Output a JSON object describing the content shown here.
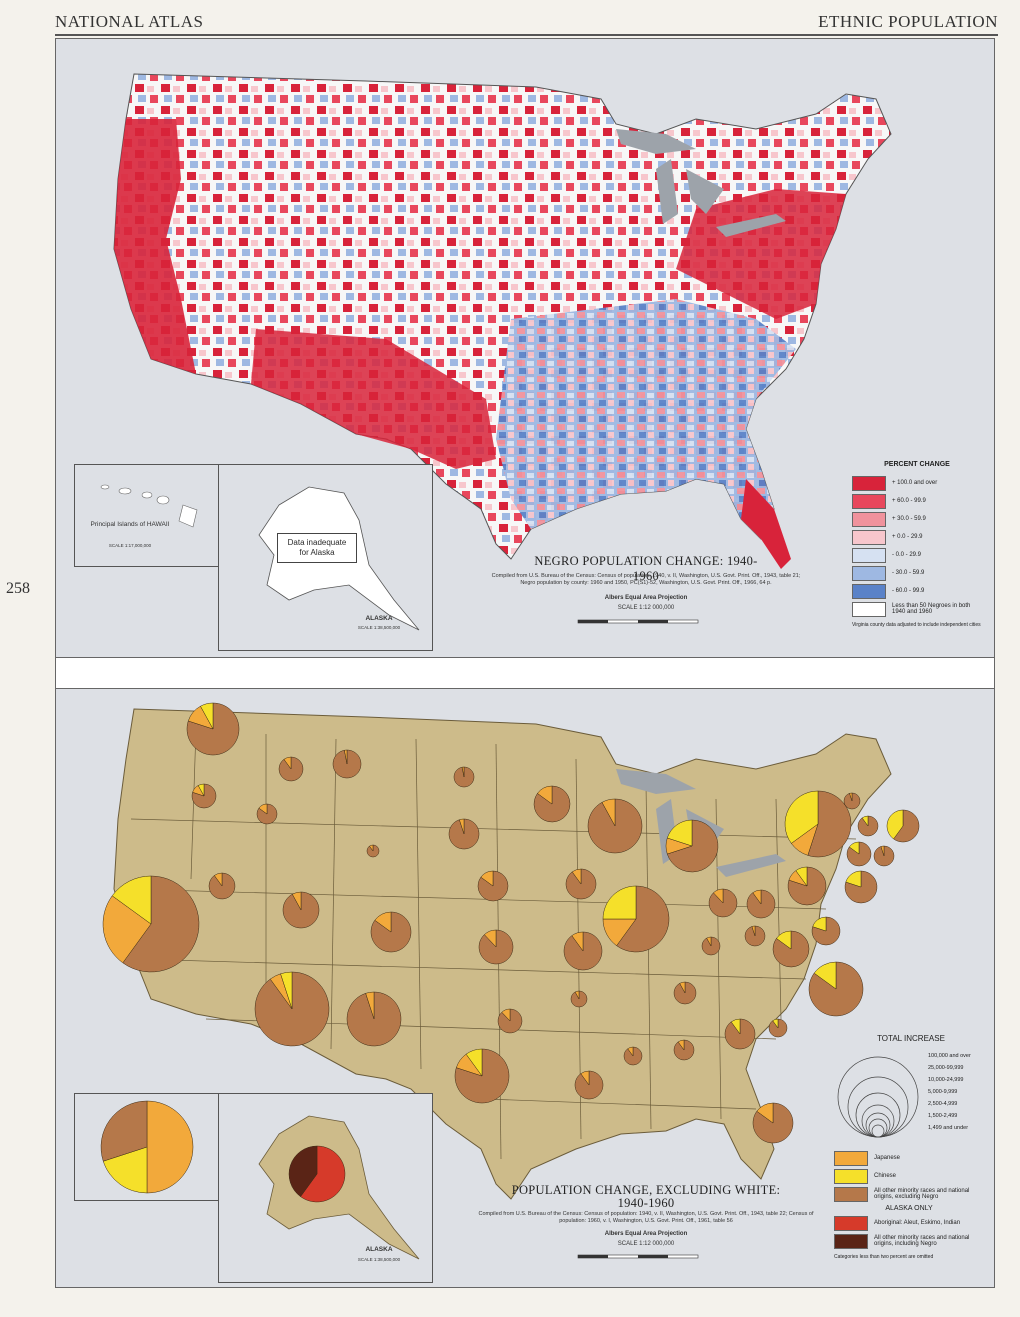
{
  "header": {
    "left": "NATIONAL ATLAS",
    "right": "ETHNIC POPULATION",
    "page_number": "258"
  },
  "top_map": {
    "title": "NEGRO POPULATION CHANGE: 1940-1960",
    "credit": "Compiled from U.S. Bureau of the Census: Census of population: 1940, v. II, Washington, U.S. Govt. Print. Off., 1943, table 21; Negro population by county: 1960 and 1950, PC(S1)-52, Washington, U.S. Govt. Print. Off., 1966, 64 p.",
    "projection": "Albers Equal Area Projection",
    "scale": "SCALE 1:12 000,000",
    "scale_miles": [
      "0",
      "100",
      "200",
      "300",
      "400 MILES"
    ],
    "scale_km": [
      "0",
      "200",
      "400",
      "600 KILOMETERS"
    ],
    "hawaii_label": "Principal Islands of HAWAII",
    "hawaii_scale": "SCALE 1:17,000,000",
    "alaska_label": "ALASKA",
    "alaska_scale": "SCALE 1:38,500,000",
    "alaska_note": "Data inadequate for Alaska",
    "legend": {
      "heading": "PERCENT CHANGE",
      "items": [
        {
          "label": "+ 100.0 and over",
          "color": "#d8233a"
        },
        {
          "label": "+ 60.0 - 99.9",
          "color": "#e8475c"
        },
        {
          "label": "+ 30.0 - 59.9",
          "color": "#f0929c"
        },
        {
          "label": "+ 0.0 - 29.9",
          "color": "#f7c6cc"
        },
        {
          "label": "- 0.0 - 29.9",
          "color": "#d6e1f2"
        },
        {
          "label": "- 30.0 - 59.9",
          "color": "#9eb8e2"
        },
        {
          "label": "- 60.0 - 99.9",
          "color": "#5a82c8"
        },
        {
          "label": "Less than 50 Negroes in both 1940 and 1960",
          "color": "#ffffff"
        }
      ],
      "note": "Virginia county data adjusted to include independent cities"
    }
  },
  "bottom_map": {
    "title_line1": "POPULATION CHANGE, EXCLUDING WHITE:",
    "title_line2": "1940-1960",
    "credit": "Compiled from U.S. Bureau of the Census: Census of population: 1940, v. II, Washington, U.S. Govt. Print. Off., 1943, table 22; Census of population: 1960, v. I, Washington, U.S. Govt. Print. Off., 1961, table 56",
    "projection": "Albers Equal Area Projection",
    "scale": "SCALE 1:12 000,000",
    "scale_miles": [
      "0",
      "100",
      "200",
      "300",
      "400 MILES"
    ],
    "scale_km": [
      "0",
      "200",
      "400",
      "600 KILOMETERS"
    ],
    "alaska_label": "ALASKA",
    "alaska_scale": "SCALE 1:38,500,000",
    "size_legend": {
      "heading": "TOTAL INCREASE",
      "items": [
        "100,000 and over",
        "25,000-99,999",
        "10,000-24,999",
        "5,000-9,999",
        "2,500-4,999",
        "1,500-2,499",
        "1,499 and under"
      ]
    },
    "legend": {
      "items": [
        {
          "label": "Japanese",
          "color": "#f2a93b"
        },
        {
          "label": "Chinese",
          "color": "#f5e02a"
        },
        {
          "label": "All other minority races and national origins, excluding Negro",
          "color": "#b5784a"
        }
      ],
      "alaska_heading": "ALASKA ONLY",
      "alaska_items": [
        {
          "label": "Aboriginal: Aleut, Eskimo, Indian",
          "color": "#d63a2a"
        },
        {
          "label": "All other minority races and national origins, including Negro",
          "color": "#5a2416"
        }
      ],
      "note": "Categories less than two percent are omitted"
    }
  }
}
